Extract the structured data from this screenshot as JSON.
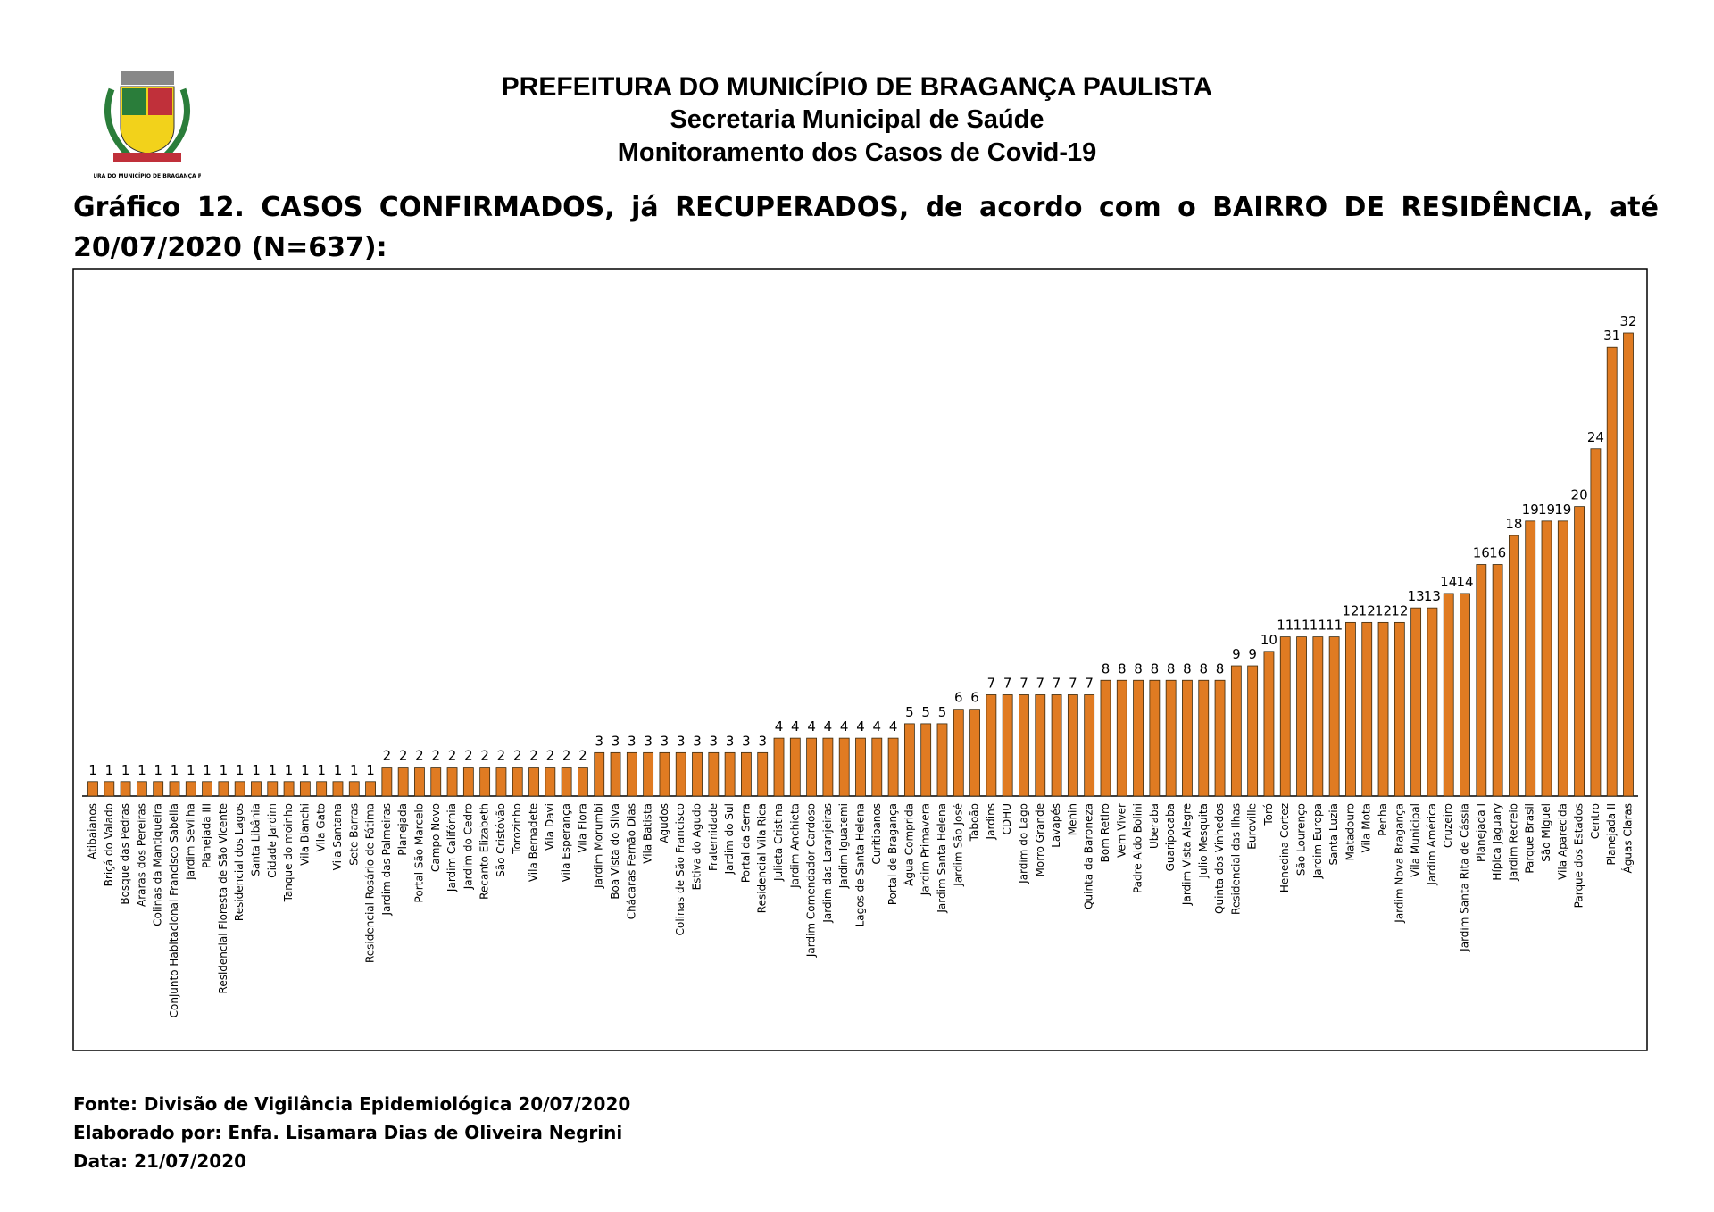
{
  "header": {
    "line1": "PREFEITURA DO MUNICÍPIO DE BRAGANÇA PAULISTA",
    "line2": "Secretaria Municipal de Saúde",
    "line3": "Monitoramento dos Casos de Covid-19",
    "logo_caption": "PREFEITURA DO MUNICÍPIO DE BRAGANÇA PAULISTA"
  },
  "chart_data": {
    "type": "bar",
    "title": "Gráfico 12. CASOS CONFIRMADOS, já RECUPERADOS, de acordo com o BAIRRO DE RESIDÊNCIA, até 20/07/2020 (N=637):",
    "color": "#e07b22",
    "categories": [
      "Atibaianos",
      "Briçá do Valado",
      "Bosque das Pedras",
      "Araras dos Pereiras",
      "Colinas da Mantiqueira",
      "Conjunto Habitacional Francisco Sabella",
      "Jardim Sevilha",
      "Planejada III",
      "Residencial Floresta de São Vicente",
      "Residencial dos Lagos",
      "Santa Libânia",
      "Cidade Jardim",
      "Tanque do moinho",
      "Vila Bianchi",
      "Vila Gato",
      "Vila Santana",
      "Sete Barras",
      "Residencial Rosário de Fátima",
      "Jardim das Palmeiras",
      "Planejada",
      "Portal São Marcelo",
      "Campo Novo",
      "Jardim Califórnia",
      "Jardim do Cedro",
      "Recanto Elizabeth",
      "São Cristóvão",
      "Torozinho",
      "Vila Bernadete",
      "Vila Davi",
      "Vila Esperança",
      "Vila Flora",
      "Jardim Morumbi",
      "Boa Vista do Silva",
      "Chácaras Fernão Dias",
      "Vila Batista",
      "Agudos",
      "Colinas de São Francisco",
      "Estiva do Agudo",
      "Fraternidade",
      "Jardim do Sul",
      "Portal da Serra",
      "Residencial Vila Rica",
      "Julieta Cristina",
      "Jardim Anchieta",
      "Jardim Comendador Cardoso",
      "Jardim das Laranjeiras",
      "Jardim Iguatemi",
      "Lagos de Santa Helena",
      "Curitibanos",
      "Portal de Bragança",
      "Água Comprida",
      "Jardim Primavera",
      "Jardim Santa Helena",
      "Jardim São José",
      "Taboão",
      "Jardins",
      "CDHU",
      "Jardim do Lago",
      "Morro Grande",
      "Lavapés",
      "Menin",
      "Quinta da Baroneza",
      "Bom Retiro",
      "Vem Viver",
      "Padre Aldo Bolini",
      "Uberaba",
      "Guaripocaba",
      "Jardim Vista Alegre",
      "Julio Mesquita",
      "Quinta dos Vinhedos",
      "Residencial das Ilhas",
      "Euroville",
      "Toró",
      "Henedina Cortez",
      "São Lourenço",
      "Jardim Europa",
      "Santa Luzia",
      "Matadouro",
      "Vila Mota",
      "Penha",
      "Jardim Nova Bragança",
      "Vila Municipal",
      "Jardim América",
      "Cruzeiro",
      "Jardim Santa Rita de Cássia",
      "Planejada I",
      "Hípica Jaguary",
      "Jardim Recreio",
      "Parque Brasil",
      "São Miguel",
      "Vila Aparecida",
      "Parque dos Estados",
      "Centro",
      "Planejada II",
      "Águas Claras"
    ],
    "values": [
      1,
      1,
      1,
      1,
      1,
      1,
      1,
      1,
      1,
      1,
      1,
      1,
      1,
      1,
      1,
      1,
      1,
      1,
      2,
      2,
      2,
      2,
      2,
      2,
      2,
      2,
      2,
      2,
      2,
      2,
      2,
      3,
      3,
      3,
      3,
      3,
      3,
      3,
      3,
      3,
      3,
      3,
      4,
      4,
      4,
      4,
      4,
      4,
      4,
      4,
      5,
      5,
      5,
      6,
      6,
      7,
      7,
      7,
      7,
      7,
      7,
      7,
      8,
      8,
      8,
      8,
      8,
      8,
      8,
      8,
      9,
      9,
      10,
      11,
      11,
      11,
      11,
      12,
      12,
      12,
      12,
      13,
      13,
      14,
      14,
      16,
      16,
      18,
      19,
      19,
      19,
      20,
      24,
      31,
      32
    ]
  },
  "footer": {
    "source": "Fonte: Divisão de Vigilância Epidemiológica 20/07/2020",
    "author": "Elaborado por: Enfa. Lisamara Dias de Oliveira Negrini",
    "date": "Data: 21/07/2020"
  }
}
